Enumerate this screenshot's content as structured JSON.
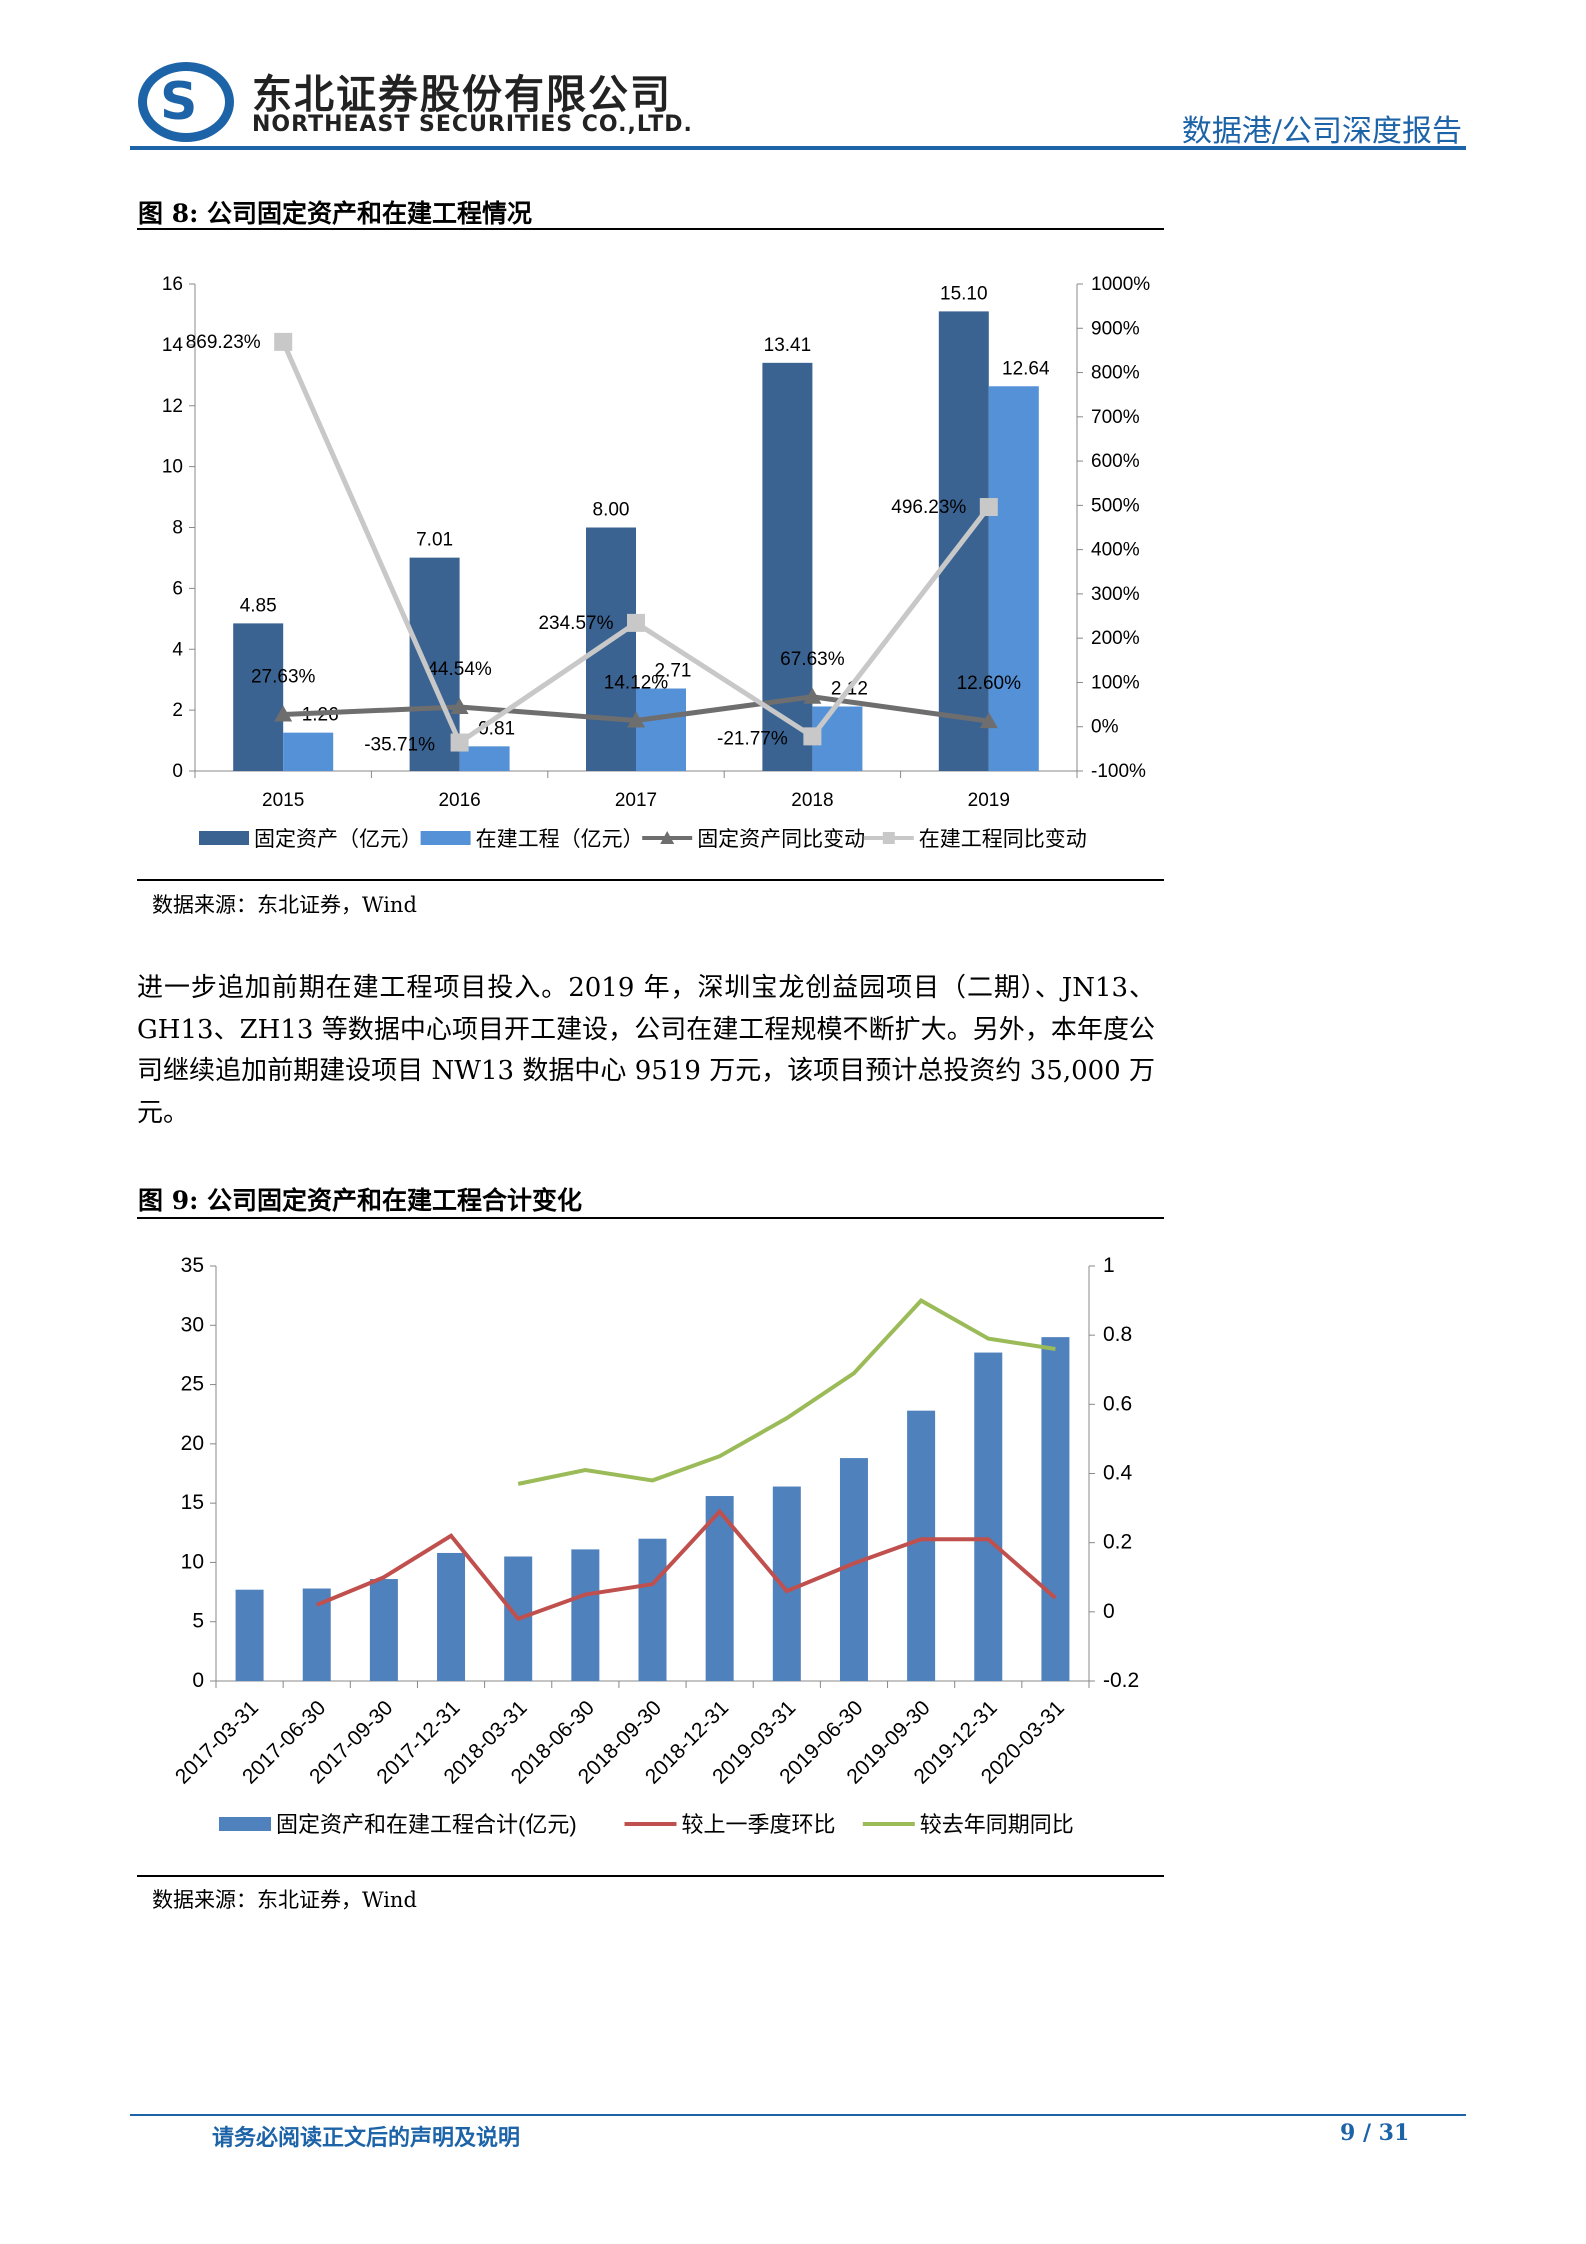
{
  "header": {
    "company_cn": "东北证券股份有限公司",
    "company_en": "NORTHEAST SECURITIES CO.,LTD.",
    "report_type": "数据港/公司深度报告",
    "brand_color": "#1d63a8"
  },
  "figure8": {
    "title": "图 8: 公司固定资产和在建工程情况",
    "source": "数据来源：东北证券，Wind"
  },
  "paragraph": "进一步追加前期在建工程项目投入。2019 年，深圳宝龙创益园项目（二期）、JN13、GH13、ZH13 等数据中心项目开工建设，公司在建工程规模不断扩大。另外，本年度公司继续追加前期建设项目 NW13 数据中心 9519 万元，该项目预计总投资约 35,000 万元。",
  "figure9": {
    "title": "图 9: 公司固定资产和在建工程合计变化",
    "source": "数据来源：东北证券，Wind"
  },
  "footer": {
    "disclaimer": "请务必阅读正文后的声明及说明",
    "page": "9 / 31"
  },
  "chart_data": [
    {
      "type": "bar",
      "categories": [
        "2015",
        "2016",
        "2017",
        "2018",
        "2019"
      ],
      "ylim": [
        0,
        16
      ],
      "yticks": [
        "0",
        "2",
        "4",
        "6",
        "8",
        "10",
        "12",
        "14",
        "16"
      ],
      "y2lim": [
        -100,
        1000
      ],
      "y2ticks": [
        "-100%",
        "0%",
        "100%",
        "200%",
        "300%",
        "400%",
        "500%",
        "600%",
        "700%",
        "800%",
        "900%",
        "1000%"
      ],
      "legend": "bottom",
      "grid": false,
      "series": [
        {
          "name": "固定资产（亿元）",
          "kind": "bar",
          "axis": "left",
          "color": "#3a6392",
          "values": [
            4.85,
            7.01,
            8.0,
            13.41,
            15.1
          ],
          "labels": [
            "4.85",
            "7.01",
            "8.00",
            "13.41",
            "15.10"
          ]
        },
        {
          "name": "在建工程（亿元）",
          "kind": "bar",
          "axis": "left",
          "color": "#5591d6",
          "values": [
            1.26,
            0.81,
            2.71,
            2.12,
            12.64
          ],
          "labels": [
            "1.26",
            "0.81",
            "2.71",
            "2.12",
            "12.64"
          ]
        },
        {
          "name": "固定资产同比变动",
          "kind": "line",
          "axis": "right",
          "color": "#6e6e6e",
          "marker": "triangle",
          "values": [
            27.63,
            44.54,
            14.12,
            67.63,
            12.6
          ],
          "labels": [
            "27.63%",
            "44.54%",
            "14.12%",
            "67.63%",
            "12.60%"
          ]
        },
        {
          "name": "在建工程同比变动",
          "kind": "line",
          "axis": "right",
          "color": "#c8c8c8",
          "marker": "square",
          "values": [
            869.23,
            -35.71,
            234.57,
            -21.77,
            496.23
          ],
          "labels": [
            "869.23%",
            "-35.71%",
            "234.57%",
            "-21.77%",
            "496.23%"
          ]
        }
      ]
    },
    {
      "type": "bar",
      "categories": [
        "2017-03-31",
        "2017-06-30",
        "2017-09-30",
        "2017-12-31",
        "2018-03-31",
        "2018-06-30",
        "2018-09-30",
        "2018-12-31",
        "2019-03-31",
        "2019-06-30",
        "2019-09-30",
        "2019-12-31",
        "2020-03-31"
      ],
      "ylim": [
        0,
        35
      ],
      "yticks": [
        "0",
        "5",
        "10",
        "15",
        "20",
        "25",
        "30",
        "35"
      ],
      "y2lim": [
        -0.2,
        1
      ],
      "y2ticks": [
        "-0.2",
        "0",
        "0.2",
        "0.4",
        "0.6",
        "0.8",
        "1"
      ],
      "legend": "bottom",
      "grid": false,
      "series": [
        {
          "name": "固定资产和在建工程合计(亿元)",
          "kind": "bar",
          "axis": "left",
          "color": "#4f81bd",
          "values": [
            7.7,
            7.8,
            8.6,
            10.8,
            10.5,
            11.1,
            12.0,
            15.6,
            16.4,
            18.8,
            22.8,
            27.7,
            29.0
          ]
        },
        {
          "name": "较上一季度环比",
          "kind": "line",
          "axis": "right",
          "color": "#c0504d",
          "values": [
            null,
            0.02,
            0.1,
            0.22,
            -0.02,
            0.05,
            0.08,
            0.29,
            0.06,
            0.14,
            0.21,
            0.21,
            0.04
          ]
        },
        {
          "name": "较去年同期同比",
          "kind": "line",
          "axis": "right",
          "color": "#9bbb59",
          "values": [
            null,
            null,
            null,
            null,
            0.37,
            0.41,
            0.38,
            0.45,
            0.56,
            0.69,
            0.9,
            0.79,
            0.76
          ]
        }
      ]
    }
  ]
}
